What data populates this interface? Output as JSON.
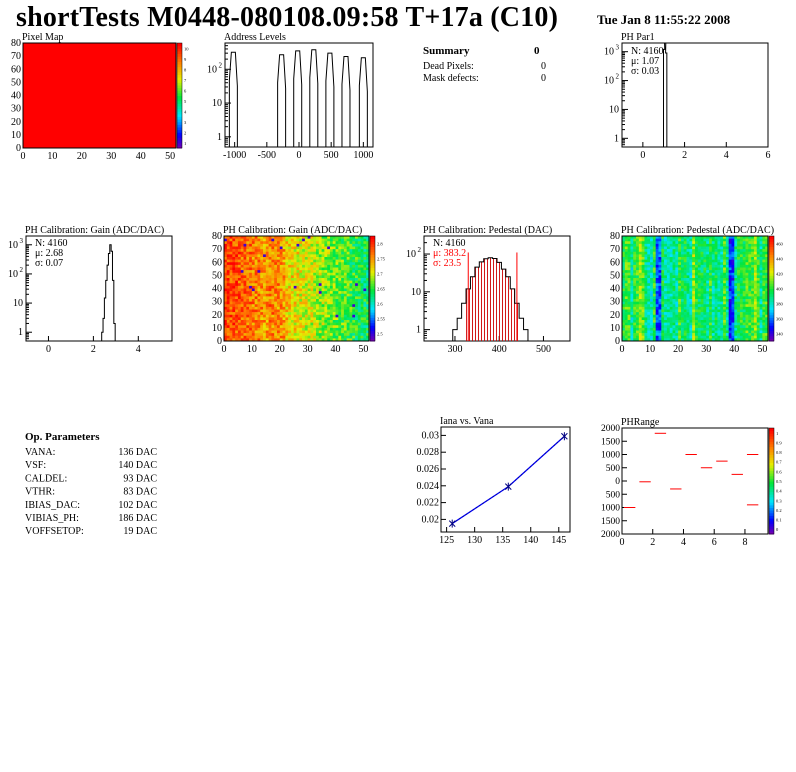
{
  "header": {
    "title": "shortTests M0448-080108.09:58 T+17a (C10)",
    "date": "Tue Jan  8 11:55:22 2008"
  },
  "summary": {
    "title": "Summary",
    "total": "0",
    "rows": [
      {
        "label": "Dead Pixels:",
        "value": "0"
      },
      {
        "label": "Mask defects:",
        "value": "0"
      }
    ]
  },
  "op_params": {
    "title": "Op. Parameters",
    "rows": [
      {
        "name": "VANA:",
        "value": "136 DAC"
      },
      {
        "name": "VSF:",
        "value": "140 DAC"
      },
      {
        "name": "CALDEL:",
        "value": "93 DAC"
      },
      {
        "name": "VTHR:",
        "value": "83 DAC"
      },
      {
        "name": "IBIAS_DAC:",
        "value": "102 DAC"
      },
      {
        "name": "VIBIAS_PH:",
        "value": "186 DAC"
      },
      {
        "name": "VOFFSETOP:",
        "value": "19 DAC"
      }
    ]
  },
  "colors": {
    "hist_line": "#000000",
    "red": "#ff0000",
    "blue_line": "#0000ff",
    "navy_line": "#000080",
    "hatch_red": "#cc0000"
  },
  "chart_data": [
    {
      "id": "pixel-map",
      "type": "heatmap",
      "title": "Pixel Map",
      "xlim": [
        0,
        52
      ],
      "ylim": [
        0,
        80
      ],
      "xticks": [
        0,
        10,
        20,
        30,
        40,
        50
      ],
      "yticks": [
        0,
        10,
        20,
        30,
        40,
        50,
        60,
        70,
        80
      ],
      "palette_ticks": [
        "1",
        "2",
        "3",
        "4",
        "5",
        "6",
        "7",
        "8",
        "9",
        "10"
      ],
      "fill_value": 10
    },
    {
      "id": "address-levels",
      "type": "bar",
      "title": "Address Levels",
      "log_y": true,
      "xlim": [
        -1150,
        1150
      ],
      "ylim": [
        0.5,
        600
      ],
      "xticks": [
        -1000,
        -500,
        0,
        500,
        1000
      ],
      "yticks": [
        {
          "v": 1,
          "label": "1"
        },
        {
          "v": 10,
          "label": "10"
        },
        {
          "v": 100,
          "label": "10²"
        }
      ],
      "peaks": [
        {
          "x": -1020,
          "y": 320
        },
        {
          "x": -270,
          "y": 270
        },
        {
          "x": -20,
          "y": 350
        },
        {
          "x": 230,
          "y": 380
        },
        {
          "x": 480,
          "y": 300
        },
        {
          "x": 730,
          "y": 240
        },
        {
          "x": 1000,
          "y": 220
        }
      ]
    },
    {
      "id": "ph-par1",
      "type": "bar",
      "title": "PH Par1",
      "log_y": true,
      "xlim": [
        -1,
        6
      ],
      "ylim": [
        0.5,
        2000
      ],
      "xticks": [
        0,
        2,
        4,
        6
      ],
      "yticks": [
        {
          "v": 1,
          "label": "1"
        },
        {
          "v": 10,
          "label": "10"
        },
        {
          "v": 100,
          "label": "10²"
        },
        {
          "v": 1000,
          "label": "10³"
        }
      ],
      "stats": [
        {
          "label": "N: 4160"
        },
        {
          "label": "μ: 1.07"
        },
        {
          "label": "σ: 0.03"
        }
      ],
      "bins": [
        {
          "x": 1.02,
          "y": 1200
        },
        {
          "x": 1.07,
          "y": 2000
        },
        {
          "x": 1.12,
          "y": 900
        }
      ]
    },
    {
      "id": "ph-gain-hist",
      "type": "line",
      "title": "PH Calibration: Gain (ADC/DAC)",
      "log_y": true,
      "xlim": [
        -1,
        5.5
      ],
      "ylim": [
        0.5,
        2000
      ],
      "xticks": [
        0,
        2,
        4
      ],
      "yticks": [
        {
          "v": 1,
          "label": "1"
        },
        {
          "v": 10,
          "label": "10"
        },
        {
          "v": 100,
          "label": "10²"
        },
        {
          "v": 1000,
          "label": "10³"
        }
      ],
      "stats": [
        {
          "label": "N: 4160"
        },
        {
          "label": "μ: 2.68"
        },
        {
          "label": "σ: 0.07"
        }
      ],
      "x": [
        2.4,
        2.46,
        2.52,
        2.58,
        2.64,
        2.7,
        2.76,
        2.82,
        2.88,
        2.94
      ],
      "y": [
        1,
        3,
        15,
        60,
        200,
        500,
        1000,
        600,
        60,
        2
      ]
    },
    {
      "id": "ph-gain-map",
      "type": "heatmap",
      "title": "PH Calibration: Gain (ADC/DAC)",
      "xlim": [
        0,
        52
      ],
      "ylim": [
        0,
        80
      ],
      "xticks": [
        0,
        10,
        20,
        30,
        40,
        50
      ],
      "yticks": [
        0,
        10,
        20,
        30,
        40,
        50,
        60,
        70,
        80
      ],
      "palette_ticks": [
        "2.5",
        "2.55",
        "2.6",
        "2.65",
        "2.7",
        "2.75",
        "2.8"
      ]
    },
    {
      "id": "ph-pedestal-hist",
      "type": "line",
      "title": "PH Calibration: Pedestal (DAC)",
      "log_y": true,
      "xlim": [
        230,
        560
      ],
      "ylim": [
        0.5,
        300
      ],
      "xticks": [
        300,
        400,
        500
      ],
      "yticks": [
        {
          "v": 1,
          "label": "1"
        },
        {
          "v": 10,
          "label": "10"
        },
        {
          "v": 100,
          "label": "10²"
        }
      ],
      "stats": [
        {
          "label": "N: 4160",
          "color": "black"
        },
        {
          "label": "μ: 383.2",
          "color": "red"
        },
        {
          "label": "σ: 23.5",
          "color": "red"
        }
      ],
      "fit_range": [
        330,
        440
      ],
      "x": [
        300,
        310,
        320,
        330,
        340,
        350,
        360,
        370,
        380,
        390,
        400,
        410,
        420,
        430,
        440,
        450,
        460
      ],
      "y": [
        1,
        2,
        5,
        12,
        25,
        45,
        62,
        75,
        80,
        76,
        60,
        40,
        25,
        12,
        5,
        2,
        1
      ]
    },
    {
      "id": "ph-pedestal-map",
      "type": "heatmap",
      "title": "PH Calibration: Pedestal (ADC/DAC)",
      "xlim": [
        0,
        52
      ],
      "ylim": [
        0,
        80
      ],
      "xticks": [
        0,
        10,
        20,
        30,
        40,
        50
      ],
      "yticks": [
        0,
        10,
        20,
        30,
        40,
        50,
        60,
        70,
        80
      ],
      "palette_ticks": [
        "340",
        "360",
        "380",
        "400",
        "420",
        "440",
        "460"
      ]
    },
    {
      "id": "iana-vana",
      "type": "line",
      "title": "Iana vs. Vana",
      "xlim": [
        124,
        147
      ],
      "ylim": [
        0.0185,
        0.031
      ],
      "xticks": [
        125,
        130,
        135,
        140,
        145
      ],
      "yticks": [
        0.02,
        0.022,
        0.024,
        0.026,
        0.028,
        0.03
      ],
      "x": [
        126,
        136,
        146
      ],
      "y": [
        0.0195,
        0.0239,
        0.0299
      ]
    },
    {
      "id": "ph-range",
      "type": "scatter",
      "title": "PHRange",
      "xlim": [
        0,
        9.5
      ],
      "ylim": [
        -2000,
        2000
      ],
      "xticks": [
        0,
        2,
        4,
        6,
        8
      ],
      "yticks": [
        -2000,
        -1500,
        -1000,
        -500,
        0,
        500,
        1000,
        1500,
        2000
      ],
      "ytick_labels": [
        "2000",
        "1500",
        "1000",
        "500",
        "0",
        "500",
        "1000",
        "1500",
        "2000"
      ],
      "palette_ticks": [
        "0",
        "0.1",
        "0.2",
        "0.3",
        "0.4",
        "0.5",
        "0.6",
        "0.7",
        "0.8",
        "0.9",
        "1"
      ],
      "segments": [
        {
          "x0": 0,
          "x1": 1,
          "y": -1000
        },
        {
          "x0": 1,
          "x1": 2,
          "y": -30
        },
        {
          "x0": 2,
          "x1": 3,
          "y": 1800
        },
        {
          "x0": 3,
          "x1": 4,
          "y": -300
        },
        {
          "x0": 4,
          "x1": 5,
          "y": 1000
        },
        {
          "x0": 5,
          "x1": 6,
          "y": 500
        },
        {
          "x0": 6,
          "x1": 7,
          "y": 750
        },
        {
          "x0": 7,
          "x1": 8,
          "y": 250
        },
        {
          "x0": 8,
          "x1": 9,
          "y": 1000
        },
        {
          "x0": 8,
          "x1": 9,
          "y": -900
        }
      ]
    }
  ]
}
